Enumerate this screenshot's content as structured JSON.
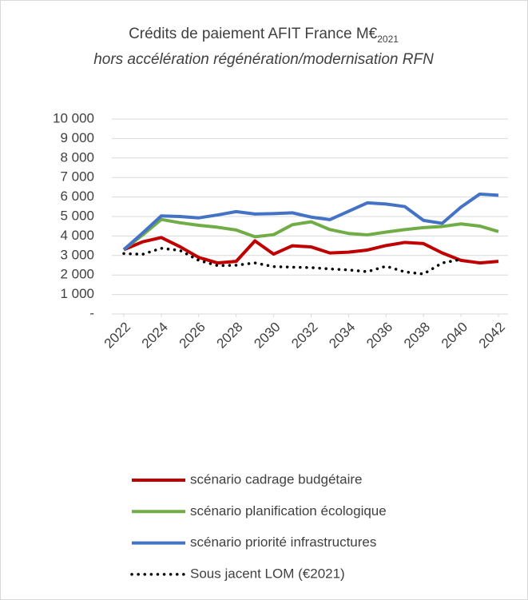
{
  "chart_data": {
    "type": "line",
    "title": "Crédits de paiement AFIT France M€",
    "title_subscript": "2021",
    "subtitle": "hors accélération régénération/modernisation RFN",
    "x": [
      2022,
      2023,
      2024,
      2025,
      2026,
      2027,
      2028,
      2029,
      2030,
      2031,
      2032,
      2033,
      2034,
      2035,
      2036,
      2037,
      2038,
      2039,
      2040,
      2041,
      2042
    ],
    "xlim": [
      2022,
      2042
    ],
    "xticks": [
      2022,
      2024,
      2026,
      2028,
      2030,
      2032,
      2034,
      2036,
      2038,
      2040,
      2042
    ],
    "ylim": [
      0,
      10000
    ],
    "yticks": [
      {
        "value": 0,
        "label": "-"
      },
      {
        "value": 1000,
        "label": "1 000"
      },
      {
        "value": 2000,
        "label": "2 000"
      },
      {
        "value": 3000,
        "label": "3 000"
      },
      {
        "value": 4000,
        "label": "4 000"
      },
      {
        "value": 5000,
        "label": "5 000"
      },
      {
        "value": 6000,
        "label": "6 000"
      },
      {
        "value": 7000,
        "label": "7 000"
      },
      {
        "value": 8000,
        "label": "8 000"
      },
      {
        "value": 9000,
        "label": "9 000"
      },
      {
        "value": 10000,
        "label": "10 000"
      }
    ],
    "grid": true,
    "legend": "bottom",
    "series": [
      {
        "name": "scénario cadrage budgétaire",
        "color": "#c00000",
        "dash": "solid",
        "values": [
          3300,
          3700,
          3920,
          3450,
          2900,
          2620,
          2700,
          3750,
          3070,
          3500,
          3440,
          3130,
          3170,
          3280,
          3510,
          3670,
          3610,
          3130,
          2750,
          2620,
          2700
        ]
      },
      {
        "name": "scénario planification écologique",
        "color": "#70ad47",
        "dash": "solid",
        "values": [
          3300,
          4050,
          4850,
          4680,
          4550,
          4450,
          4310,
          3960,
          4070,
          4580,
          4730,
          4330,
          4130,
          4060,
          4200,
          4330,
          4430,
          4490,
          4620,
          4510,
          4230
        ]
      },
      {
        "name": "scénario priorité infrastructures",
        "color": "#4472c4",
        "dash": "solid",
        "values": [
          3300,
          4150,
          5030,
          5000,
          4930,
          5080,
          5250,
          5130,
          5150,
          5190,
          4970,
          4840,
          5270,
          5700,
          5640,
          5510,
          4800,
          4650,
          5480,
          6150,
          6090
        ]
      },
      {
        "name": "Sous jacent LOM (€2021)",
        "color": "#000000",
        "dash": "dotted",
        "values": [
          3100,
          3060,
          3370,
          3260,
          2750,
          2480,
          2500,
          2620,
          2430,
          2400,
          2380,
          2310,
          2260,
          2170,
          2450,
          2160,
          2050,
          2620,
          2800,
          null,
          null
        ]
      }
    ]
  }
}
